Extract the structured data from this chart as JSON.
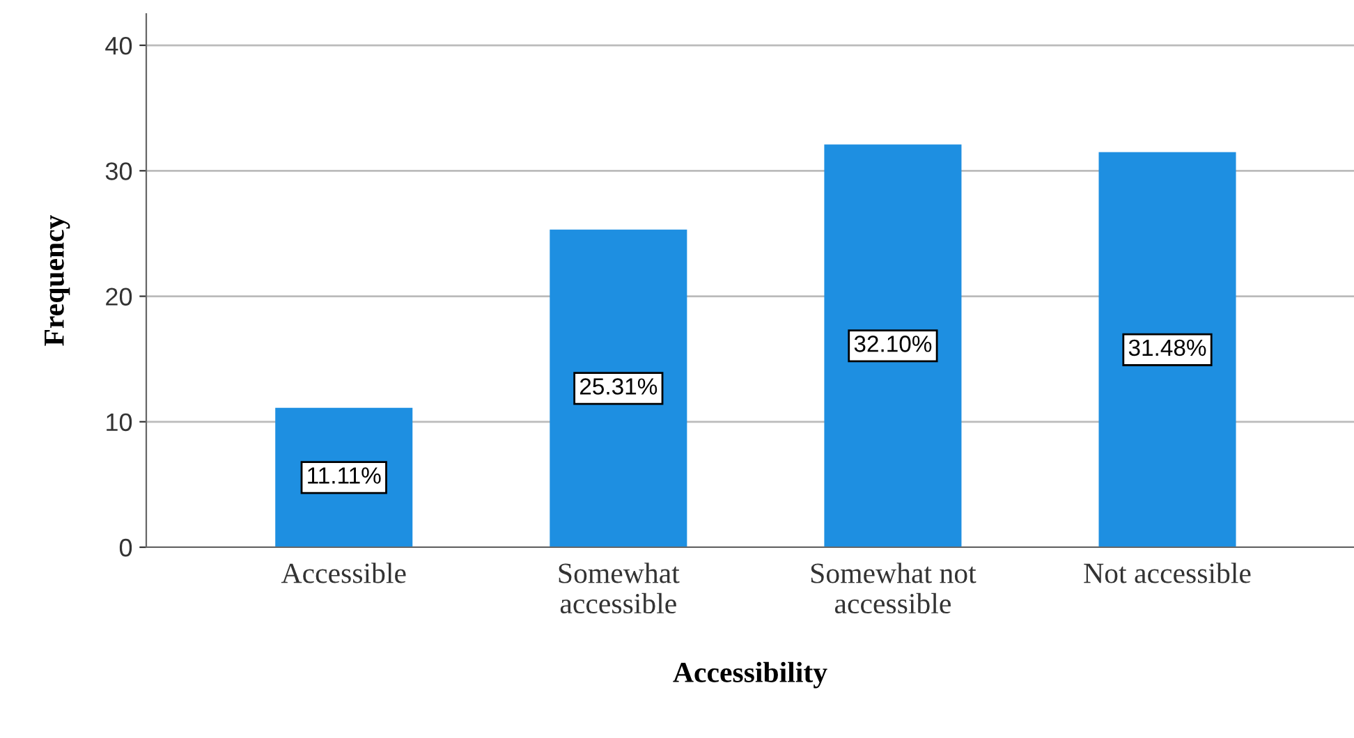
{
  "chart_data": {
    "type": "bar",
    "xlabel": "Accessibility",
    "ylabel": "Frequency",
    "categories": [
      "Accessible",
      "Somewhat\naccessible",
      "Somewhat not\naccessible",
      "Not accessible"
    ],
    "values": [
      11.11,
      25.31,
      32.1,
      31.48
    ],
    "value_labels": [
      "11.11%",
      "25.31%",
      "32.10%",
      "31.48%"
    ],
    "color": "#1e8fe1",
    "ylim": [
      0,
      42.5
    ],
    "yticks": [
      0,
      10,
      20,
      30,
      40
    ],
    "grid": "y",
    "legend": false
  }
}
